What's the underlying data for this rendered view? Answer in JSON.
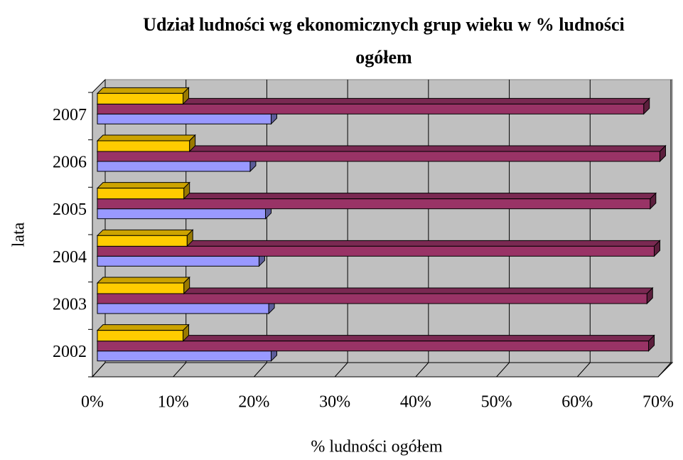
{
  "chart_data": {
    "type": "bar3d_horizontal",
    "title": "Udział ludności wg ekonomicznych grup wieku w % ludności ogółem",
    "x_label": "% ludności ogółem",
    "y_label": "lata",
    "categories": [
      "2002",
      "2003",
      "2004",
      "2005",
      "2006",
      "2007"
    ],
    "series": [
      {
        "color": "#9999ff",
        "values": [
          21.5,
          21.2,
          20.0,
          20.8,
          18.9,
          21.5
        ]
      },
      {
        "color": "#993366",
        "values": [
          68.2,
          68.0,
          68.9,
          68.4,
          69.6,
          67.6
        ]
      },
      {
        "color": "#ffcc00",
        "values": [
          10.6,
          10.7,
          11.1,
          10.7,
          11.4,
          10.6
        ]
      }
    ],
    "xlim": [
      0,
      70
    ],
    "xticks": [
      {
        "value": 0,
        "label": "0%"
      },
      {
        "value": 10,
        "label": "10%"
      },
      {
        "value": 20,
        "label": "20%"
      },
      {
        "value": 30,
        "label": "30%"
      },
      {
        "value": 40,
        "label": "40%"
      },
      {
        "value": 50,
        "label": "50%"
      },
      {
        "value": 60,
        "label": "60%"
      },
      {
        "value": 70,
        "label": "70%"
      }
    ],
    "grid": true
  }
}
